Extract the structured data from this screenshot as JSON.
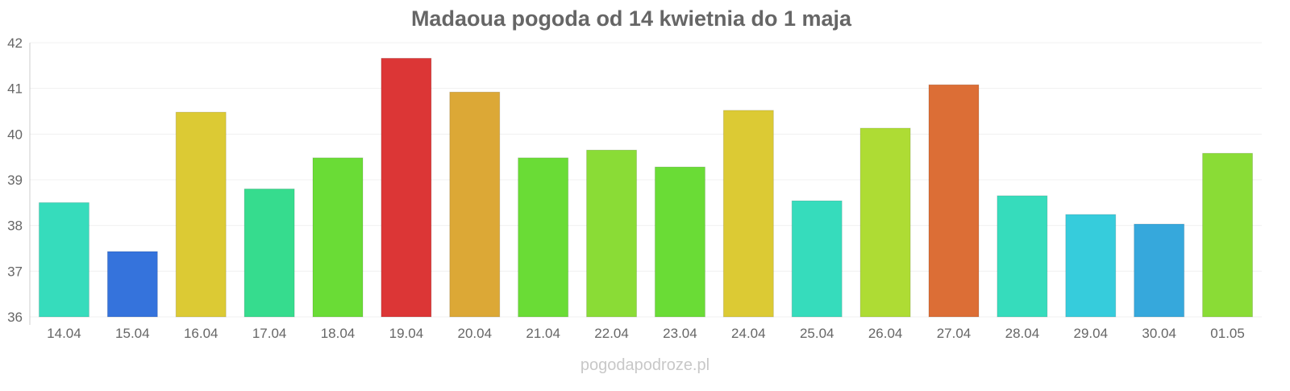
{
  "chart_data": {
    "type": "bar",
    "title": "Madaoua pogoda od 14 kwietnia do 1 maja",
    "xlabel": "",
    "ylabel": "",
    "ylim": [
      36,
      42
    ],
    "yticks": [
      36,
      37,
      38,
      39,
      40,
      41,
      42
    ],
    "grid": true,
    "categories": [
      "14.04",
      "15.04",
      "16.04",
      "17.04",
      "18.04",
      "19.04",
      "20.04",
      "21.04",
      "22.04",
      "23.04",
      "24.04",
      "25.04",
      "26.04",
      "27.04",
      "28.04",
      "29.04",
      "30.04",
      "01.05"
    ],
    "values": [
      38.5,
      37.43,
      40.48,
      38.8,
      39.48,
      41.66,
      40.92,
      39.48,
      39.65,
      39.28,
      40.52,
      38.54,
      40.13,
      41.08,
      38.65,
      38.24,
      38.03,
      39.58
    ],
    "colors": [
      "#36dcbc",
      "#3573dc",
      "#dcca34",
      "#36dc8e",
      "#6adc36",
      "#dc3636",
      "#dca836",
      "#6adc36",
      "#8adc36",
      "#6adc36",
      "#dcca34",
      "#36dcbc",
      "#aedc34",
      "#dc6e36",
      "#36dcbc",
      "#36ccdc",
      "#36a8dc",
      "#8adc36"
    ]
  },
  "watermark": "pogodapodroze.pl"
}
